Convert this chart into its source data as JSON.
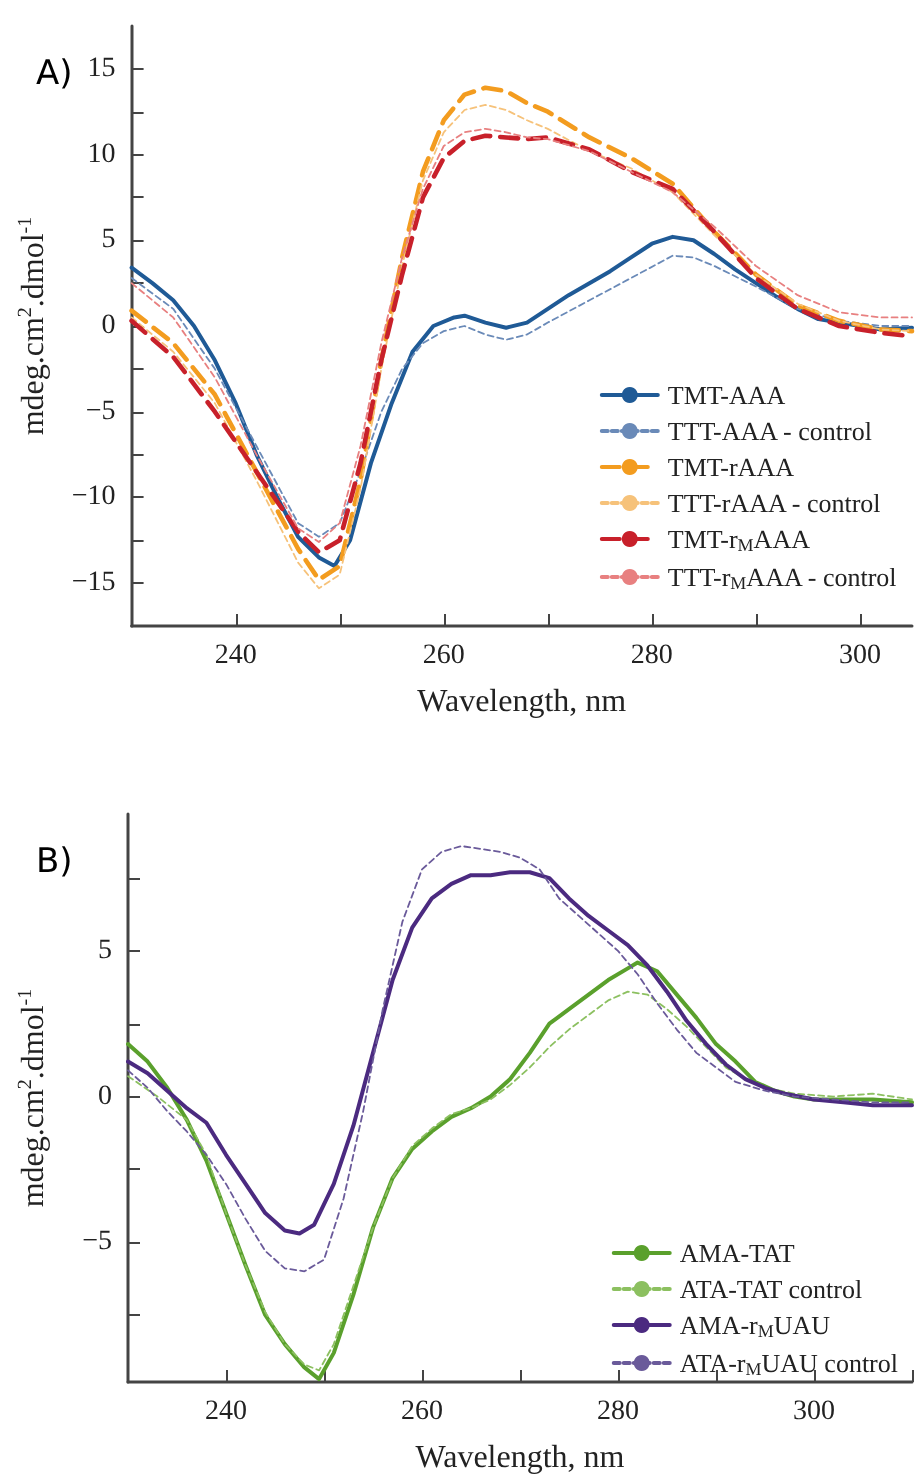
{
  "chart_data": [
    {
      "type": "line",
      "annotations": [
        "A)"
      ],
      "xlabel": "Wavelength, nm",
      "ylabel": "mdeg.cm$^{2}$.dmol$^{-1}$",
      "xlim": [
        230,
        305
      ],
      "ylim": [
        -17.5,
        17.5
      ],
      "xticks": [
        240,
        {
          "value": 250,
          "label": null
        },
        260,
        {
          "value": 270,
          "label": null
        },
        280,
        {
          "value": 290,
          "label": null
        },
        300
      ],
      "yticks": [
        -15,
        {
          "value": -12.5,
          "label": null
        },
        -10,
        {
          "value": -7.5,
          "label": null
        },
        -5,
        {
          "value": -2.5,
          "label": null
        },
        0,
        {
          "value": 2.5,
          "label": null
        },
        5,
        {
          "value": 7.5,
          "label": null
        },
        10,
        {
          "value": 12.5,
          "label": null
        },
        15
      ],
      "grid": false,
      "legend": "bottom right",
      "marker": "none",
      "series": [
        {
          "name": "TMT-AAA",
          "color": "#1f5a96",
          "line_style": "solid",
          "x": [
            230,
            232,
            234,
            236,
            238,
            240,
            242,
            244,
            246,
            248,
            249.5,
            251,
            253,
            255,
            257,
            259,
            261,
            262,
            264,
            266,
            268,
            270,
            272,
            274,
            276,
            278,
            280,
            282,
            284,
            286,
            288,
            290,
            292,
            294,
            296,
            298,
            300,
            302,
            305
          ],
          "values": [
            3.4,
            2.5,
            1.5,
            0,
            -2,
            -4.5,
            -7.5,
            -10,
            -12.3,
            -13.5,
            -14,
            -12.5,
            -8,
            -4.5,
            -1.5,
            0,
            0.5,
            0.6,
            0.2,
            -0.1,
            0.2,
            1,
            1.8,
            2.5,
            3.2,
            4,
            4.8,
            5.2,
            5,
            4.2,
            3.3,
            2.5,
            1.7,
            1,
            0.4,
            0.2,
            0,
            -0.2,
            -0.1
          ]
        },
        {
          "name": "TTT-AAA - control",
          "color": "#6a8ab8",
          "line_style": "dotted",
          "x": [
            230,
            234,
            238,
            242,
            246,
            248,
            250,
            252,
            254,
            256,
            258,
            260,
            262,
            264,
            266,
            268,
            270,
            274,
            278,
            282,
            284,
            286,
            290,
            294,
            298,
            302,
            305
          ],
          "values": [
            2.8,
            1,
            -2.5,
            -7,
            -11.5,
            -12.3,
            -11.5,
            -8.5,
            -5,
            -2.5,
            -1,
            -0.3,
            0,
            -0.5,
            -0.8,
            -0.5,
            0.2,
            1.5,
            2.8,
            4.1,
            4,
            3.5,
            2.3,
            1,
            0.3,
            0,
            0
          ]
        },
        {
          "name": "TMT-rAAA",
          "color": "#f39c1f",
          "line_style": "dashed",
          "x": [
            230,
            234,
            238,
            242,
            246,
            248,
            250,
            252,
            254,
            256,
            258,
            260,
            262,
            264,
            266,
            268,
            270,
            274,
            278,
            282,
            286,
            290,
            294,
            298,
            302,
            305
          ],
          "values": [
            0.9,
            -1,
            -4,
            -8.5,
            -13,
            -14.8,
            -14,
            -9,
            -2,
            4,
            9,
            12,
            13.5,
            13.9,
            13.7,
            13,
            12.5,
            11,
            9.8,
            8.3,
            5.5,
            3,
            1.2,
            0.3,
            -0.2,
            -0.3
          ]
        },
        {
          "name": "TTT-rAAA - control",
          "color": "#f6c27a",
          "line_style": "dotted",
          "x": [
            230,
            234,
            238,
            242,
            246,
            248,
            250,
            252,
            254,
            256,
            258,
            260,
            262,
            264,
            266,
            268,
            270,
            274,
            278,
            282,
            286,
            290,
            294,
            298,
            302,
            305
          ],
          "values": [
            0.5,
            -1.5,
            -4.5,
            -9,
            -13.8,
            -15.3,
            -14.5,
            -9.5,
            -2.5,
            3.5,
            8.5,
            11.3,
            12.6,
            12.9,
            12.6,
            12,
            11.5,
            10.2,
            9.2,
            7.8,
            5.3,
            3,
            1.3,
            0.3,
            -0.2,
            -0.3
          ]
        },
        {
          "name": "TMT-r$_{M}$AAA",
          "color": "#c8202a",
          "line_style": "dashed",
          "x": [
            230,
            234,
            238,
            242,
            246,
            248,
            250,
            252,
            254,
            256,
            258,
            260,
            262,
            264,
            266,
            268,
            270,
            274,
            278,
            282,
            286,
            290,
            294,
            298,
            302,
            305
          ],
          "values": [
            0.3,
            -1.8,
            -5,
            -8.5,
            -12,
            -13.2,
            -12.5,
            -8,
            -2,
            3,
            7.5,
            9.8,
            10.8,
            11.1,
            11,
            10.9,
            11,
            10.3,
            9,
            8,
            5.5,
            2.8,
            1,
            0,
            -0.4,
            -0.6
          ]
        },
        {
          "name": "TTT-r$_{M}$AAA - control",
          "color": "#e88080",
          "line_style": "dotted",
          "x": [
            230,
            234,
            238,
            242,
            246,
            248,
            250,
            252,
            254,
            256,
            258,
            260,
            262,
            264,
            266,
            268,
            270,
            274,
            278,
            282,
            286,
            290,
            294,
            298,
            302,
            305
          ],
          "values": [
            2.5,
            0.5,
            -3,
            -7.5,
            -11.8,
            -12.6,
            -11.5,
            -7,
            -1,
            4,
            8,
            10.5,
            11.3,
            11.5,
            11.3,
            11,
            10.9,
            10.2,
            9,
            7.8,
            5.8,
            3.5,
            1.8,
            0.8,
            0.5,
            0.5
          ]
        }
      ]
    },
    {
      "type": "line",
      "annotations": [
        "B)"
      ],
      "xlabel": "Wavelength, nm",
      "ylabel": "mdeg.cm$^{2}$.dmol$^{-1}$",
      "xlim": [
        230,
        310
      ],
      "ylim": [
        -9.8,
        9.7
      ],
      "xticks": [
        240,
        {
          "value": 250,
          "label": null
        },
        260,
        {
          "value": 270,
          "label": null
        },
        280,
        {
          "value": 290,
          "label": null
        },
        300,
        {
          "value": 310,
          "label": null
        }
      ],
      "yticks": [
        {
          "value": -7.5,
          "label": null
        },
        -5,
        {
          "value": -2.5,
          "label": null
        },
        0,
        {
          "value": 2.5,
          "label": null
        },
        5,
        {
          "value": 7.5,
          "label": null
        }
      ],
      "grid": false,
      "legend": "bottom right",
      "marker": "none",
      "series": [
        {
          "name": "AMA-TAT",
          "color": "#5aa02c",
          "line_style": "solid",
          "x": [
            230,
            232,
            234,
            236,
            238,
            240,
            242,
            244,
            246,
            248,
            249.5,
            251,
            253,
            255,
            257,
            259,
            261,
            263,
            265,
            267,
            269,
            271,
            273,
            275,
            277,
            279,
            281,
            282,
            284,
            286,
            288,
            290,
            292,
            294,
            296,
            298,
            300,
            303,
            306,
            310
          ],
          "values": [
            1.8,
            1.2,
            0.3,
            -0.8,
            -2.2,
            -4,
            -5.8,
            -7.5,
            -8.5,
            -9.3,
            -9.7,
            -8.8,
            -6.8,
            -4.5,
            -2.8,
            -1.8,
            -1.2,
            -0.7,
            -0.4,
            0,
            0.6,
            1.5,
            2.5,
            3,
            3.5,
            4,
            4.4,
            4.6,
            4.3,
            3.5,
            2.7,
            1.8,
            1.2,
            0.5,
            0.2,
            0,
            -0.1,
            -0.1,
            -0.1,
            -0.2
          ]
        },
        {
          "name": "ATA-TAT control",
          "color": "#8cc060",
          "line_style": "dotted",
          "x": [
            230,
            233,
            236,
            238,
            240,
            242,
            244,
            246,
            248,
            249.5,
            251,
            253,
            255,
            257,
            259,
            261,
            263,
            265,
            267,
            269,
            271,
            273,
            275,
            277,
            279,
            281,
            283,
            285,
            287,
            289,
            291,
            293,
            295,
            298,
            302,
            306,
            310
          ],
          "values": [
            0.7,
            0,
            -0.8,
            -2,
            -4,
            -5.8,
            -7.4,
            -8.5,
            -9.2,
            -9.4,
            -8.5,
            -6.5,
            -4.5,
            -2.8,
            -1.7,
            -1.1,
            -0.6,
            -0.4,
            -0.1,
            0.4,
            1,
            1.7,
            2.3,
            2.8,
            3.3,
            3.6,
            3.5,
            3,
            2.4,
            1.7,
            1,
            0.6,
            0.3,
            0.1,
            0,
            0.1,
            -0.1
          ]
        },
        {
          "name": "AMA-r$_{M}$UAU",
          "color": "#4b2a80",
          "line_style": "solid",
          "x": [
            230,
            232,
            234,
            236,
            238,
            240,
            242,
            244,
            246,
            247.5,
            249,
            251,
            253,
            255,
            257,
            259,
            261,
            263,
            265,
            267,
            269,
            271,
            273,
            275,
            277,
            279,
            281,
            283,
            285,
            287,
            289,
            291,
            293,
            295,
            297,
            300,
            303,
            306,
            310
          ],
          "values": [
            1.2,
            0.8,
            0.2,
            -0.4,
            -0.9,
            -2,
            -3,
            -4,
            -4.6,
            -4.7,
            -4.4,
            -3,
            -1,
            1.5,
            4,
            5.8,
            6.8,
            7.3,
            7.6,
            7.6,
            7.7,
            7.7,
            7.5,
            6.8,
            6.2,
            5.7,
            5.2,
            4.5,
            3.6,
            2.6,
            1.8,
            1.1,
            0.6,
            0.3,
            0.1,
            -0.1,
            -0.2,
            -0.3,
            -0.3
          ]
        },
        {
          "name": "ATA-r$_{M}$UAU control",
          "color": "#6a5a9a",
          "line_style": "dotted",
          "x": [
            230,
            232,
            234,
            236,
            238,
            240,
            242,
            244,
            246,
            248,
            250,
            252,
            254,
            256,
            258,
            260,
            262,
            264,
            266,
            268,
            270,
            272,
            274,
            276,
            278,
            280,
            282,
            284,
            286,
            288,
            290,
            292,
            295,
            298,
            302,
            306,
            310
          ],
          "values": [
            0.9,
            0.3,
            -0.5,
            -1.2,
            -2,
            -3,
            -4.2,
            -5.3,
            -5.9,
            -6,
            -5.6,
            -3.5,
            -0.5,
            3,
            6,
            7.8,
            8.4,
            8.6,
            8.5,
            8.4,
            8.2,
            7.8,
            6.8,
            6.2,
            5.6,
            5,
            4.2,
            3.2,
            2.3,
            1.5,
            1,
            0.5,
            0.2,
            0,
            -0.1,
            -0.2,
            -0.2
          ]
        }
      ]
    }
  ]
}
